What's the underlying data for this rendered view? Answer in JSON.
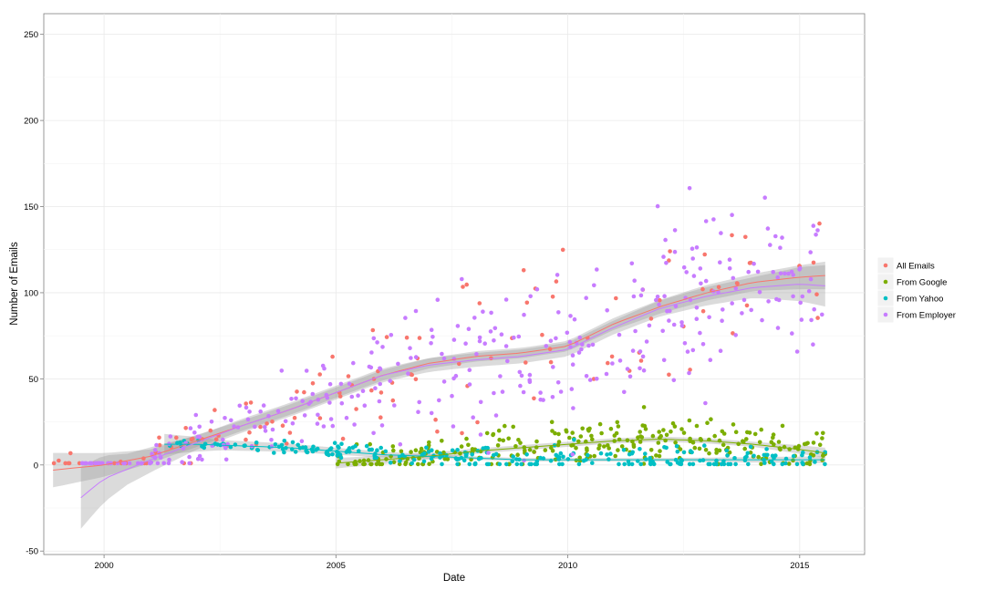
{
  "chart_data": {
    "type": "scatter",
    "title": "",
    "xlabel": "Date",
    "ylabel": "Number of Emails",
    "xlim": [
      1998.7,
      2016.4
    ],
    "ylim": [
      -52,
      262
    ],
    "x_ticks": [
      2000,
      2005,
      2010,
      2015
    ],
    "x_tick_labels": [
      "2000",
      "2005",
      "2010",
      "2015"
    ],
    "y_ticks": [
      -50,
      0,
      50,
      100,
      150,
      200,
      250
    ],
    "y_tick_labels": [
      "-50",
      "0",
      "50",
      "100",
      "150",
      "200",
      "250"
    ],
    "grid": true,
    "legend_position": "right",
    "series": [
      {
        "name": "All Emails",
        "color": "#F8766D",
        "range": [
          1998.9,
          2015.55
        ],
        "trend": [
          [
            1998.9,
            -3
          ],
          [
            2000,
            0
          ],
          [
            2001,
            5
          ],
          [
            2002,
            14
          ],
          [
            2003,
            23
          ],
          [
            2004,
            32
          ],
          [
            2005,
            42
          ],
          [
            2006,
            52
          ],
          [
            2007,
            59
          ],
          [
            2008,
            63
          ],
          [
            2009,
            65
          ],
          [
            2010,
            69
          ],
          [
            2011,
            82
          ],
          [
            2012,
            92
          ],
          [
            2013,
            100
          ],
          [
            2014,
            106
          ],
          [
            2015,
            109
          ],
          [
            2015.55,
            110
          ]
        ],
        "band": [
          [
            1998.9,
            10
          ],
          [
            2001,
            4
          ],
          [
            2003,
            3
          ],
          [
            2005,
            3
          ],
          [
            2008,
            3
          ],
          [
            2010,
            3
          ],
          [
            2012,
            4
          ],
          [
            2014,
            5
          ],
          [
            2015.55,
            8
          ]
        ]
      },
      {
        "name": "From Google",
        "color": "#7CAE00",
        "range": [
          2005.0,
          2015.55
        ],
        "trend": [
          [
            2005,
            1
          ],
          [
            2006,
            3
          ],
          [
            2007,
            5
          ],
          [
            2008,
            8
          ],
          [
            2009,
            10
          ],
          [
            2010,
            12
          ],
          [
            2011,
            14
          ],
          [
            2012,
            15
          ],
          [
            2013,
            14
          ],
          [
            2014,
            12
          ],
          [
            2015,
            9
          ],
          [
            2015.55,
            7
          ]
        ],
        "band": [
          [
            2005,
            3
          ],
          [
            2008,
            1.5
          ],
          [
            2011,
            1.5
          ],
          [
            2014,
            1.5
          ],
          [
            2015.55,
            3
          ]
        ]
      },
      {
        "name": "From Yahoo",
        "color": "#00BFC4",
        "range": [
          2001.3,
          2015.55
        ],
        "trend": [
          [
            2001.3,
            12
          ],
          [
            2002,
            12
          ],
          [
            2003,
            11
          ],
          [
            2004,
            10
          ],
          [
            2005,
            8
          ],
          [
            2006,
            6
          ],
          [
            2007,
            5
          ],
          [
            2008,
            4
          ],
          [
            2009,
            3
          ],
          [
            2010,
            3
          ],
          [
            2011,
            3
          ],
          [
            2012,
            3
          ],
          [
            2013,
            3
          ],
          [
            2014,
            3
          ],
          [
            2015,
            3
          ],
          [
            2015.55,
            3
          ]
        ],
        "band": [
          [
            2001.3,
            6
          ],
          [
            2002.5,
            3
          ],
          [
            2005,
            2
          ],
          [
            2008,
            1
          ],
          [
            2012,
            1
          ],
          [
            2015.55,
            2
          ]
        ]
      },
      {
        "name": "From Employer",
        "color": "#C77CFF",
        "range": [
          1999.5,
          2015.55
        ],
        "trend": [
          [
            1999.5,
            -19
          ],
          [
            2000,
            -8
          ],
          [
            2001,
            3
          ],
          [
            2002,
            13
          ],
          [
            2003,
            23
          ],
          [
            2004,
            32
          ],
          [
            2005,
            42
          ],
          [
            2006,
            52
          ],
          [
            2007,
            58
          ],
          [
            2008,
            61
          ],
          [
            2009,
            63
          ],
          [
            2010,
            67
          ],
          [
            2011,
            80
          ],
          [
            2012,
            91
          ],
          [
            2013,
            98
          ],
          [
            2014,
            103
          ],
          [
            2015,
            105
          ],
          [
            2015.55,
            104
          ]
        ],
        "band": [
          [
            1999.5,
            18
          ],
          [
            2000.5,
            9
          ],
          [
            2002,
            4
          ],
          [
            2005,
            4
          ],
          [
            2008,
            4
          ],
          [
            2011,
            4
          ],
          [
            2014,
            6
          ],
          [
            2015.55,
            12
          ]
        ]
      }
    ]
  }
}
